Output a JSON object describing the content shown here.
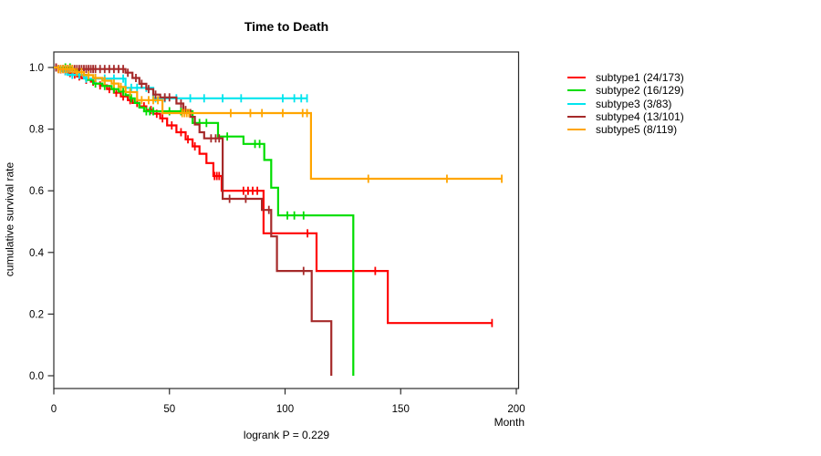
{
  "title": "Time to Death",
  "footer": "logrank P = 0.229",
  "y_axis": {
    "label": "cumulative survival rate",
    "ticks": [
      0.0,
      0.2,
      0.4,
      0.6,
      0.8,
      1.0
    ]
  },
  "x_axis": {
    "label": "Month",
    "ticks": [
      0,
      50,
      100,
      150,
      200
    ]
  },
  "chart_data": {
    "type": "line",
    "variant": "kaplan-meier-step",
    "title": "Time to Death",
    "xlabel": "Month",
    "ylabel": "cumulative survival rate",
    "xlim": [
      0,
      200
    ],
    "ylim": [
      0.0,
      1.0
    ],
    "grid": false,
    "legend_position": "right-outside",
    "annotation": "logrank P = 0.229",
    "series": [
      {
        "name": "subtype1 (24/173)",
        "color": "#ff0000",
        "steps": [
          [
            2,
            0.994
          ],
          [
            4,
            0.988
          ],
          [
            6,
            0.982
          ],
          [
            8,
            0.977
          ],
          [
            10,
            0.971
          ],
          [
            12,
            0.965
          ],
          [
            14,
            0.96
          ],
          [
            16,
            0.954
          ],
          [
            18,
            0.948
          ],
          [
            20,
            0.942
          ],
          [
            23,
            0.93
          ],
          [
            26,
            0.918
          ],
          [
            29,
            0.906
          ],
          [
            32,
            0.894
          ],
          [
            34,
            0.885
          ],
          [
            37,
            0.874
          ],
          [
            40,
            0.862
          ],
          [
            43,
            0.85
          ],
          [
            46,
            0.835
          ],
          [
            49,
            0.812
          ],
          [
            53,
            0.79
          ],
          [
            57,
            0.767
          ],
          [
            60,
            0.744
          ],
          [
            63,
            0.72
          ],
          [
            66,
            0.69
          ],
          [
            69,
            0.648
          ],
          [
            72.6,
            0.6
          ],
          [
            90.7,
            0.462
          ],
          [
            113.6,
            0.34
          ],
          [
            144.4,
            0.171
          ]
        ],
        "censors": [
          1,
          3,
          5,
          7,
          9,
          11,
          14,
          17,
          20,
          24,
          27,
          30,
          33,
          36,
          39,
          42,
          44.5,
          47,
          51,
          55,
          58,
          61,
          69.5,
          70.5,
          71.5,
          82,
          84,
          86,
          88,
          109.7,
          139,
          189.5
        ],
        "end": 189.5
      },
      {
        "name": "subtype2 (16/129)",
        "color": "#00dd00",
        "steps": [
          [
            8,
            0.992
          ],
          [
            11,
            0.976
          ],
          [
            14,
            0.96
          ],
          [
            17,
            0.948
          ],
          [
            21,
            0.94
          ],
          [
            25,
            0.93
          ],
          [
            28,
            0.922
          ],
          [
            31,
            0.91
          ],
          [
            33,
            0.9
          ],
          [
            35,
            0.885
          ],
          [
            37,
            0.87
          ],
          [
            39,
            0.858
          ],
          [
            60,
            0.82
          ],
          [
            71,
            0.776
          ],
          [
            82,
            0.752
          ],
          [
            91,
            0.7
          ],
          [
            94,
            0.61
          ],
          [
            97,
            0.52
          ],
          [
            129.5,
            0.0
          ]
        ],
        "censors": [
          5,
          7,
          13,
          18,
          22,
          26,
          30,
          33.5,
          40,
          41.5,
          43,
          50,
          55,
          63,
          66,
          75,
          87,
          89,
          101,
          104,
          108
        ],
        "end": 129.5
      },
      {
        "name": "subtype3 (3/83)",
        "color": "#00e5ee",
        "steps": [
          [
            3,
            0.988
          ],
          [
            6,
            0.976
          ],
          [
            13,
            0.964
          ],
          [
            31,
            0.934
          ],
          [
            43,
            0.9
          ]
        ],
        "censors": [
          5,
          8,
          11,
          14,
          18,
          22,
          26,
          30,
          33.5,
          36,
          40,
          44,
          48,
          53,
          59,
          65,
          73,
          81,
          99,
          104,
          107,
          109.5
        ],
        "end": 109.5
      },
      {
        "name": "subtype4 (13/101)",
        "color": "#a52a2a",
        "steps": [
          [
            2,
            0.995
          ],
          [
            31,
            0.983
          ],
          [
            34,
            0.966
          ],
          [
            37,
            0.947
          ],
          [
            40,
            0.93
          ],
          [
            43,
            0.912
          ],
          [
            46,
            0.903
          ],
          [
            53,
            0.883
          ],
          [
            56,
            0.862
          ],
          [
            59,
            0.84
          ],
          [
            61,
            0.815
          ],
          [
            63,
            0.79
          ],
          [
            65,
            0.77
          ],
          [
            73,
            0.574
          ],
          [
            90,
            0.538
          ],
          [
            94,
            0.452
          ],
          [
            96.5,
            0.34
          ],
          [
            111.5,
            0.177
          ],
          [
            120,
            0.0
          ]
        ],
        "censors": [
          1,
          2,
          3,
          4,
          5,
          6,
          7,
          8,
          9,
          10,
          11,
          12,
          13,
          14,
          15,
          16,
          17,
          18,
          20,
          22,
          24,
          26,
          28,
          30,
          32,
          35.5,
          38,
          41,
          44,
          48,
          50,
          55,
          57,
          68,
          70,
          71.5,
          76,
          83,
          93,
          108
        ],
        "end": 120
      },
      {
        "name": "subtype5 (8/119)",
        "color": "#ffa500",
        "steps": [
          [
            2,
            0.995
          ],
          [
            9,
            0.985
          ],
          [
            13,
            0.975
          ],
          [
            17,
            0.966
          ],
          [
            21,
            0.957
          ],
          [
            25,
            0.948
          ],
          [
            28,
            0.937
          ],
          [
            31,
            0.92
          ],
          [
            36,
            0.894
          ],
          [
            47,
            0.852
          ],
          [
            111.2,
            0.639
          ]
        ],
        "censors": [
          2,
          3,
          4,
          5,
          6,
          7,
          8,
          10,
          12,
          15,
          18,
          22,
          26,
          29,
          33,
          38,
          41,
          43,
          45,
          55.5,
          56.5,
          57.5,
          58.5,
          76.5,
          85,
          90,
          99,
          107.6,
          109.5,
          136,
          170,
          193.7
        ],
        "end": 193.7
      }
    ]
  }
}
